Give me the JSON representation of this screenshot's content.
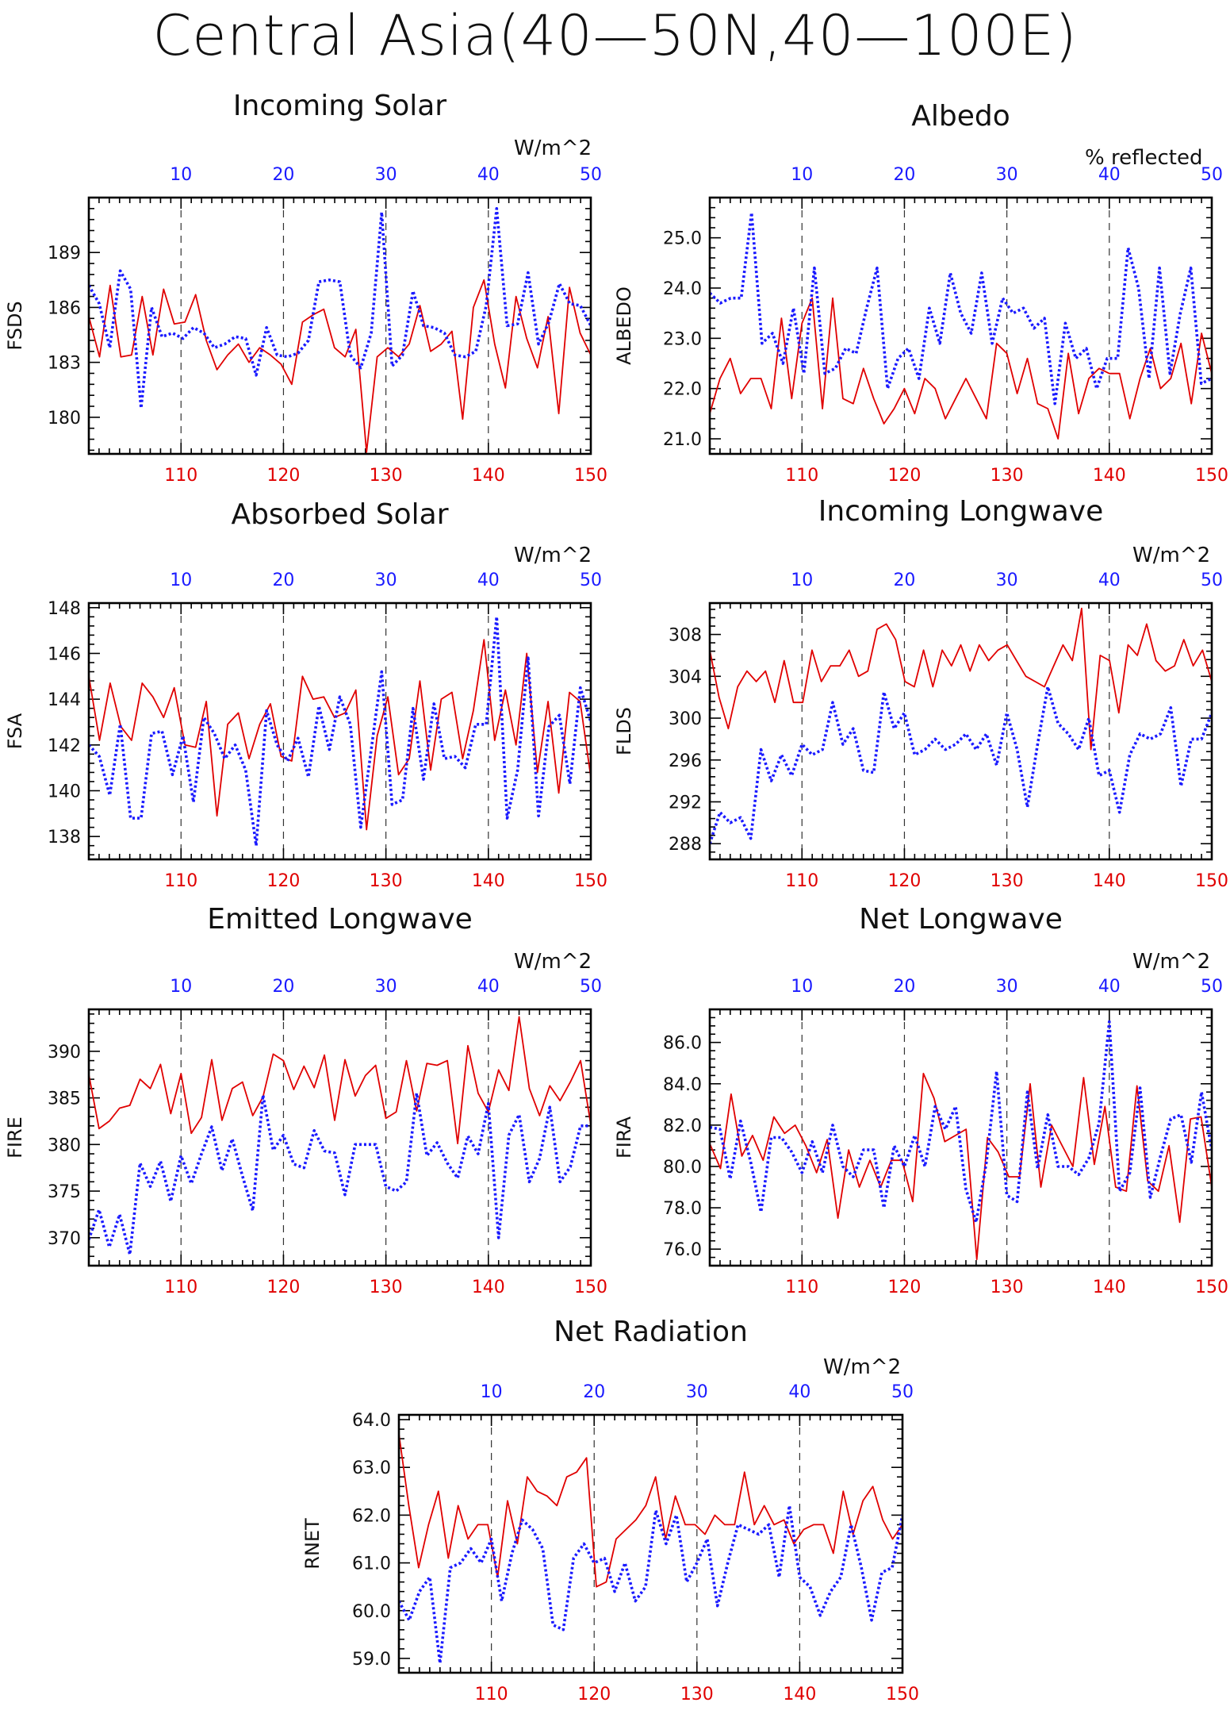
{
  "title": "Central Asia(40—50N,40—100E)",
  "colors": {
    "red": "#e00000",
    "blue": "#1a1aff"
  },
  "chart_data": [
    {
      "type": "line",
      "title": "Incoming Solar",
      "unit": "W/m^2",
      "ylabel": "FSDS",
      "xlim_bottom": [
        101,
        150
      ],
      "xticks_bottom": [
        110,
        120,
        130,
        140,
        150
      ],
      "xticks_top": [
        10,
        20,
        30,
        40,
        50
      ],
      "ylim": [
        178,
        192
      ],
      "yticks": [
        180,
        183,
        186,
        189
      ],
      "yticklabels": [
        "180",
        "183",
        "186",
        "189"
      ],
      "series": [
        {
          "color": "red",
          "style": "solid",
          "values": [
            185.5,
            183.3,
            187.2,
            183.3,
            183.4,
            186.6,
            183.4,
            187.0,
            185.1,
            185.2,
            186.7,
            184.2,
            182.6,
            183.4,
            184.0,
            183.0,
            183.8,
            183.4,
            182.9,
            181.8,
            185.2,
            185.6,
            185.9,
            183.8,
            183.3,
            184.8,
            178.1,
            183.3,
            183.8,
            183.3,
            184.0,
            186.1,
            183.6,
            184.0,
            184.7,
            179.9,
            186.0,
            187.5,
            184.0,
            181.6,
            186.6,
            184.3,
            182.7,
            185.5,
            180.2,
            187.1,
            184.6,
            183.4
          ]
        },
        {
          "color": "blue",
          "style": "dotted",
          "values": [
            187.2,
            186.2,
            183.8,
            188.0,
            187.0,
            180.5,
            186.0,
            184.4,
            184.6,
            184.3,
            184.9,
            184.6,
            183.8,
            184.0,
            184.4,
            184.3,
            182.3,
            184.9,
            183.4,
            183.3,
            183.5,
            184.2,
            187.4,
            187.5,
            187.4,
            183.4,
            182.7,
            184.6,
            191.2,
            182.8,
            183.4,
            186.9,
            185.0,
            184.9,
            184.6,
            183.4,
            183.3,
            183.6,
            186.1,
            191.4,
            185.0,
            185.1,
            187.9,
            184.0,
            185.2,
            187.3,
            186.2,
            186.1,
            185.0
          ]
        }
      ]
    },
    {
      "type": "line",
      "title": "Albedo",
      "unit": "% reflected",
      "ylabel": "ALBEDO",
      "xlim_bottom": [
        101,
        150
      ],
      "xticks_bottom": [
        110,
        120,
        130,
        140,
        150
      ],
      "xticks_top": [
        10,
        20,
        30,
        40,
        50
      ],
      "ylim": [
        20.7,
        25.8
      ],
      "yticks": [
        21.0,
        22.0,
        23.0,
        24.0,
        25.0
      ],
      "yticklabels": [
        "21.0",
        "22.0",
        "23.0",
        "24.0",
        "25.0"
      ],
      "series": [
        {
          "color": "red",
          "style": "solid",
          "values": [
            21.5,
            22.2,
            22.6,
            21.9,
            22.2,
            22.2,
            21.6,
            23.4,
            21.8,
            23.3,
            23.8,
            21.6,
            23.8,
            21.8,
            21.7,
            22.4,
            21.8,
            21.3,
            21.6,
            22.0,
            21.5,
            22.2,
            22.0,
            21.4,
            21.8,
            22.2,
            21.8,
            21.4,
            22.9,
            22.7,
            21.9,
            22.6,
            21.7,
            21.6,
            21.0,
            22.7,
            21.5,
            22.2,
            22.4,
            22.3,
            22.3,
            21.4,
            22.2,
            22.8,
            22.0,
            22.2,
            22.9,
            21.7,
            23.1,
            22.3
          ]
        },
        {
          "color": "blue",
          "style": "dotted",
          "values": [
            23.9,
            23.7,
            23.8,
            23.8,
            25.5,
            22.9,
            23.1,
            22.5,
            23.6,
            22.3,
            24.4,
            22.3,
            22.4,
            22.8,
            22.7,
            23.6,
            24.4,
            22.0,
            22.6,
            22.8,
            22.2,
            23.6,
            22.9,
            24.3,
            23.5,
            23.1,
            24.3,
            22.9,
            23.8,
            23.5,
            23.6,
            23.2,
            23.4,
            21.7,
            23.3,
            22.6,
            22.8,
            22.0,
            22.6,
            22.6,
            24.8,
            24.0,
            22.2,
            24.4,
            22.3,
            23.5,
            24.4,
            22.1,
            22.2
          ]
        }
      ]
    },
    {
      "type": "line",
      "title": "Absorbed Solar",
      "unit": "W/m^2",
      "ylabel": "FSA",
      "xlim_bottom": [
        101,
        150
      ],
      "xticks_bottom": [
        110,
        120,
        130,
        140,
        150
      ],
      "xticks_top": [
        10,
        20,
        30,
        40,
        50
      ],
      "ylim": [
        137,
        148.2
      ],
      "yticks": [
        138,
        140,
        142,
        144,
        146,
        148
      ],
      "yticklabels": [
        "138",
        "140",
        "142",
        "144",
        "146",
        "148"
      ],
      "series": [
        {
          "color": "red",
          "style": "solid",
          "values": [
            145.0,
            142.2,
            144.7,
            142.8,
            142.2,
            144.7,
            144.1,
            143.2,
            144.5,
            142.0,
            141.9,
            143.9,
            138.9,
            142.9,
            143.4,
            141.4,
            142.9,
            143.8,
            141.5,
            141.3,
            145.0,
            144.0,
            144.1,
            143.2,
            143.4,
            144.4,
            138.3,
            142.4,
            144.1,
            140.7,
            141.4,
            144.8,
            140.9,
            144.0,
            144.3,
            141.4,
            143.5,
            146.6,
            142.2,
            144.4,
            142.0,
            146.0,
            140.8,
            143.9,
            139.9,
            144.3,
            143.9,
            140.6
          ]
        },
        {
          "color": "blue",
          "style": "dotted",
          "values": [
            142.0,
            141.5,
            139.8,
            142.9,
            138.8,
            138.8,
            142.5,
            142.6,
            140.7,
            142.4,
            139.5,
            143.2,
            142.5,
            141.4,
            142.0,
            140.9,
            137.6,
            143.5,
            142.0,
            141.3,
            142.3,
            140.6,
            143.7,
            141.8,
            144.1,
            142.9,
            138.4,
            141.8,
            145.2,
            139.4,
            139.6,
            143.6,
            140.5,
            143.8,
            141.4,
            141.5,
            141.0,
            142.9,
            142.9,
            147.6,
            138.8,
            140.9,
            145.8,
            138.9,
            142.8,
            143.3,
            140.3,
            144.5,
            143.0
          ]
        }
      ]
    },
    {
      "type": "line",
      "title": "Incoming Longwave",
      "unit": "W/m^2",
      "ylabel": "FLDS",
      "xlim_bottom": [
        101,
        150
      ],
      "xticks_bottom": [
        110,
        120,
        130,
        140,
        150
      ],
      "xticks_top": [
        10,
        20,
        30,
        40,
        50
      ],
      "ylim": [
        286.5,
        311
      ],
      "yticks": [
        288,
        292,
        296,
        300,
        304,
        308
      ],
      "yticklabels": [
        "288",
        "292",
        "296",
        "300",
        "304",
        "308"
      ],
      "series": [
        {
          "color": "red",
          "style": "solid",
          "values": [
            306.5,
            302.0,
            299.0,
            303.0,
            304.5,
            303.5,
            304.5,
            301.5,
            305.5,
            301.5,
            301.5,
            306.5,
            303.5,
            305.0,
            305.0,
            306.5,
            304.0,
            304.5,
            308.5,
            309.0,
            307.5,
            303.5,
            303.0,
            306.5,
            303.0,
            306.5,
            305.0,
            307.0,
            304.5,
            307.0,
            305.5,
            306.5,
            307.0,
            305.5,
            304.0,
            303.5,
            303.0,
            305.0,
            307.0,
            305.5,
            310.5,
            297.0,
            306.0,
            305.5,
            300.5,
            307.0,
            306.0,
            309.0,
            305.5,
            304.5,
            305.0,
            307.5,
            305.0,
            306.5,
            303.5
          ]
        },
        {
          "color": "blue",
          "style": "dotted",
          "values": [
            288.0,
            291.0,
            290.0,
            290.5,
            288.5,
            297.0,
            294.0,
            296.5,
            294.5,
            297.5,
            296.5,
            297.0,
            301.5,
            297.5,
            299.0,
            295.0,
            294.8,
            302.5,
            299.0,
            300.5,
            296.5,
            297.0,
            298.0,
            297.0,
            297.5,
            298.5,
            297.0,
            298.5,
            295.5,
            300.5,
            297.0,
            291.5,
            297.5,
            303.0,
            299.5,
            298.5,
            297.0,
            300.0,
            294.5,
            295.0,
            291.0,
            296.5,
            298.5,
            298.0,
            298.5,
            301.0,
            293.5,
            298.0,
            298.0,
            300.5
          ]
        }
      ]
    },
    {
      "type": "line",
      "title": "Emitted Longwave",
      "unit": "W/m^2",
      "ylabel": "FIRE",
      "xlim_bottom": [
        101,
        150
      ],
      "xticks_bottom": [
        110,
        120,
        130,
        140,
        150
      ],
      "xticks_top": [
        10,
        20,
        30,
        40,
        50
      ],
      "ylim": [
        367,
        394.5
      ],
      "yticks": [
        370,
        375,
        380,
        385,
        390
      ],
      "yticklabels": [
        "370",
        "375",
        "380",
        "385",
        "390"
      ],
      "series": [
        {
          "color": "red",
          "style": "solid",
          "values": [
            387.5,
            381.7,
            382.5,
            383.9,
            384.2,
            387.0,
            386.0,
            388.6,
            383.3,
            387.6,
            381.2,
            382.9,
            389.1,
            382.6,
            386.0,
            386.7,
            383.1,
            385.1,
            389.7,
            389.0,
            385.9,
            388.4,
            386.1,
            389.6,
            382.6,
            389.1,
            385.2,
            387.4,
            388.5,
            382.8,
            383.5,
            389.0,
            383.6,
            388.7,
            388.5,
            389.0,
            380.1,
            390.6,
            385.5,
            383.5,
            388.0,
            385.8,
            393.7,
            386.0,
            383.1,
            386.3,
            384.7,
            386.7,
            389.0,
            382.1
          ]
        },
        {
          "color": "blue",
          "style": "dotted",
          "values": [
            369.8,
            373.0,
            369.0,
            372.5,
            368.2,
            378.0,
            375.5,
            378.2,
            373.9,
            378.8,
            375.8,
            379.0,
            381.9,
            377.2,
            380.6,
            376.6,
            372.9,
            385.3,
            379.4,
            381.0,
            377.9,
            377.5,
            381.5,
            379.3,
            379.1,
            374.6,
            380.0,
            380.0,
            380.0,
            375.5,
            375.0,
            376.0,
            385.5,
            378.8,
            380.2,
            378.0,
            376.4,
            380.9,
            379.0,
            384.4,
            370.0,
            381.0,
            383.2,
            376.0,
            378.5,
            384.0,
            376.0,
            377.6,
            382.0,
            382.0
          ]
        }
      ]
    },
    {
      "type": "line",
      "title": "Net Longwave",
      "unit": "W/m^2",
      "ylabel": "FIRA",
      "xlim_bottom": [
        101,
        150
      ],
      "xticks_bottom": [
        110,
        120,
        130,
        140,
        150
      ],
      "xticks_top": [
        10,
        20,
        30,
        40,
        50
      ],
      "ylim": [
        75.2,
        87.6
      ],
      "yticks": [
        76.0,
        78.0,
        80.0,
        82.0,
        84.0,
        86.0
      ],
      "yticklabels": [
        "76.0",
        "78.0",
        "80.0",
        "82.0",
        "84.0",
        "86.0"
      ],
      "series": [
        {
          "color": "red",
          "style": "solid",
          "values": [
            81.1,
            79.9,
            83.5,
            80.5,
            81.5,
            80.3,
            82.4,
            81.6,
            82.0,
            81.0,
            79.7,
            81.3,
            77.5,
            80.8,
            79.0,
            80.3,
            79.0,
            80.3,
            80.3,
            78.3,
            84.5,
            83.3,
            81.2,
            81.5,
            81.8,
            75.5,
            81.4,
            80.7,
            79.5,
            79.5,
            84.0,
            79.0,
            82.0,
            81.0,
            80.0,
            84.3,
            80.1,
            82.9,
            79.0,
            78.8,
            83.9,
            79.3,
            78.8,
            81.0,
            77.3,
            82.3,
            82.4,
            79.0
          ]
        },
        {
          "color": "blue",
          "style": "dotted",
          "values": [
            81.9,
            81.8,
            79.4,
            82.2,
            80.2,
            77.8,
            81.4,
            81.4,
            80.7,
            79.7,
            81.2,
            79.7,
            82.0,
            80.0,
            79.5,
            80.8,
            80.8,
            78.0,
            81.0,
            80.0,
            81.5,
            80.0,
            82.9,
            81.8,
            82.9,
            78.9,
            77.3,
            80.2,
            84.6,
            78.6,
            78.3,
            83.6,
            79.9,
            82.5,
            80.0,
            80.0,
            79.6,
            80.4,
            82.1,
            87.0,
            78.8,
            79.7,
            83.8,
            78.5,
            80.5,
            82.3,
            82.5,
            80.2,
            83.6,
            80.8
          ]
        }
      ]
    },
    {
      "type": "line",
      "title": "Net Radiation",
      "unit": "W/m^2",
      "ylabel": "RNET",
      "xlim_bottom": [
        101,
        150
      ],
      "xticks_bottom": [
        110,
        120,
        130,
        140,
        150
      ],
      "xticks_top": [
        10,
        20,
        30,
        40,
        50
      ],
      "ylim": [
        58.7,
        64.1
      ],
      "yticks": [
        59.0,
        60.0,
        61.0,
        62.0,
        63.0,
        64.0
      ],
      "yticklabels": [
        "59.0",
        "60.0",
        "61.0",
        "62.0",
        "63.0",
        "64.0"
      ],
      "series": [
        {
          "color": "red",
          "style": "solid",
          "values": [
            63.7,
            62.2,
            60.9,
            61.8,
            62.5,
            61.1,
            62.2,
            61.5,
            61.8,
            61.8,
            60.7,
            62.3,
            61.4,
            62.8,
            62.5,
            62.4,
            62.2,
            62.8,
            62.9,
            63.2,
            60.5,
            60.6,
            61.5,
            61.7,
            61.9,
            62.2,
            62.8,
            61.5,
            62.4,
            61.8,
            61.8,
            61.6,
            62.0,
            61.8,
            61.8,
            62.9,
            61.8,
            62.2,
            61.8,
            61.9,
            61.4,
            61.7,
            61.8,
            61.8,
            61.2,
            62.5,
            61.6,
            62.3,
            62.6,
            61.9,
            61.5,
            61.8
          ]
        },
        {
          "color": "blue",
          "style": "dotted",
          "values": [
            60.2,
            59.8,
            60.4,
            60.7,
            58.9,
            60.9,
            61.0,
            61.3,
            61.0,
            61.5,
            60.2,
            61.2,
            61.9,
            61.7,
            61.3,
            59.7,
            59.6,
            61.1,
            61.4,
            61.0,
            61.1,
            60.4,
            61.0,
            60.2,
            60.5,
            62.1,
            61.4,
            62.0,
            60.6,
            61.0,
            61.5,
            60.1,
            61.0,
            61.8,
            61.7,
            61.6,
            61.8,
            60.7,
            62.2,
            60.7,
            60.5,
            59.9,
            60.4,
            60.7,
            61.8,
            60.9,
            59.8,
            60.8,
            60.9,
            62.0
          ]
        }
      ]
    }
  ]
}
